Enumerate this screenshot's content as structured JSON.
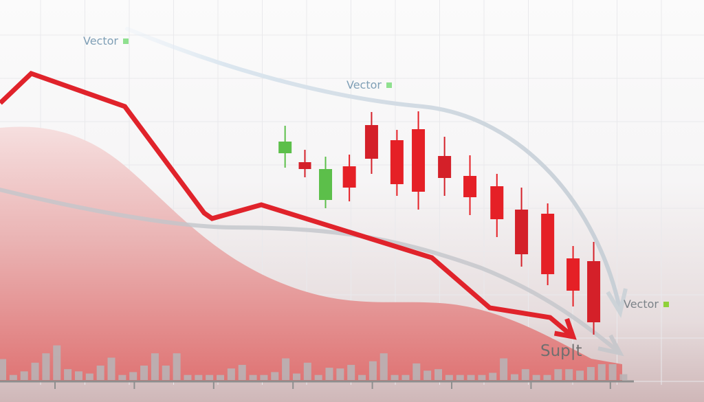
{
  "chart_data": {
    "type": "candlestick",
    "title": "",
    "xlabel": "",
    "ylabel": "",
    "grid": true,
    "ylim": [
      0,
      60
    ],
    "xlim": [
      -0.7,
      7.3
    ],
    "x_ticks": [
      0,
      1,
      2,
      3,
      4,
      5,
      6,
      7
    ],
    "colors": {
      "up": "#5cbf4a",
      "down": "#e52026",
      "down_dark": "#d42029",
      "trend_line": "#e0232b",
      "area": "#e07a7a",
      "volume": "#b9b3b5",
      "guide_curves": "#c9d3dc"
    },
    "candles": [
      {
        "x": 2.9,
        "open": 37.7,
        "high": 41.7,
        "low": 35.6,
        "close": 39.4
      },
      {
        "x": 3.15,
        "open": 36.4,
        "high": 38.2,
        "low": 34.2,
        "close": 35.4
      },
      {
        "x": 3.41,
        "open": 30.9,
        "high": 37.2,
        "low": 29.7,
        "close": 35.4
      },
      {
        "x": 3.71,
        "open": 35.8,
        "high": 37.5,
        "low": 30.7,
        "close": 32.7
      },
      {
        "x": 3.99,
        "open": 41.8,
        "high": 43.7,
        "low": 34.7,
        "close": 36.9
      },
      {
        "x": 4.31,
        "open": 39.6,
        "high": 41.1,
        "low": 31.5,
        "close": 33.2
      },
      {
        "x": 4.58,
        "open": 41.2,
        "high": 43.8,
        "low": 29.5,
        "close": 32.1
      },
      {
        "x": 4.91,
        "open": 37.3,
        "high": 40.1,
        "low": 31.5,
        "close": 34.1
      },
      {
        "x": 5.23,
        "open": 34.4,
        "high": 37.4,
        "low": 28.7,
        "close": 31.3
      },
      {
        "x": 5.57,
        "open": 32.9,
        "high": 34.7,
        "low": 25.5,
        "close": 28.1
      },
      {
        "x": 5.88,
        "open": 29.5,
        "high": 32.7,
        "low": 21.2,
        "close": 23.0
      },
      {
        "x": 6.21,
        "open": 28.9,
        "high": 30.4,
        "low": 18.5,
        "close": 20.1
      },
      {
        "x": 6.53,
        "open": 22.4,
        "high": 24.2,
        "low": 15.4,
        "close": 17.7
      },
      {
        "x": 6.79,
        "open": 22.0,
        "high": 24.8,
        "low": 11.3,
        "close": 13.1
      }
    ],
    "trend_line": {
      "x": [
        -0.69,
        -0.3,
        0.88,
        1.88,
        1.98,
        2.6,
        4.75,
        5.48,
        6.24,
        6.53
      ],
      "y": [
        45.0,
        49.3,
        44.5,
        29.0,
        28.2,
        30.2,
        22.5,
        15.2,
        13.8,
        11.0
      ],
      "arrow": true
    },
    "volume": [
      29,
      7,
      12,
      24,
      37,
      48,
      15,
      12,
      9,
      20,
      31,
      7,
      11,
      20,
      37,
      20,
      37,
      7,
      7,
      7,
      7,
      16,
      21,
      7,
      7,
      11,
      30,
      9,
      24,
      7,
      17,
      16,
      21,
      7,
      26,
      37,
      7,
      7,
      23,
      13,
      15,
      7,
      7,
      7,
      7,
      10,
      30,
      8,
      15,
      7,
      7,
      15,
      15,
      13,
      18,
      22,
      22,
      8
    ]
  },
  "labels": {
    "vector_1": "Vector",
    "vector_2": "Vector",
    "vector_3": "Vector",
    "support": "Sup|t"
  }
}
